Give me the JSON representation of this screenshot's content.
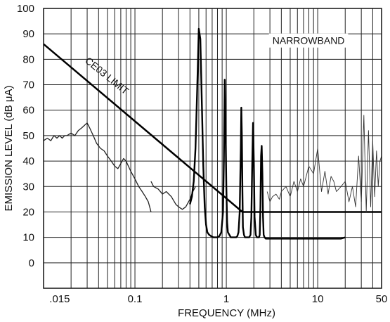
{
  "chart_data": {
    "type": "line",
    "title": "",
    "xlabel": "FREQUENCY (MHz)",
    "ylabel": "EMISSION LEVEL (dB μA)",
    "xscale": "log",
    "xlim": [
      0.01,
      50
    ],
    "ylim": [
      -10,
      100
    ],
    "grid": true,
    "x_ticks": [
      {
        "value": 0.015,
        "label": ".015"
      },
      {
        "value": 0.1,
        "label": "0.1"
      },
      {
        "value": 1,
        "label": "1"
      },
      {
        "value": 10,
        "label": "10"
      },
      {
        "value": 50,
        "label": "50"
      }
    ],
    "y_ticks": [
      {
        "value": 0,
        "label": "0"
      },
      {
        "value": 10,
        "label": "10"
      },
      {
        "value": 20,
        "label": "20"
      },
      {
        "value": 30,
        "label": "30"
      },
      {
        "value": 40,
        "label": "40"
      },
      {
        "value": 50,
        "label": "50"
      },
      {
        "value": 60,
        "label": "60"
      },
      {
        "value": 70,
        "label": "70"
      },
      {
        "value": 80,
        "label": "80"
      },
      {
        "value": 90,
        "label": "90"
      },
      {
        "value": 100,
        "label": "100"
      }
    ],
    "annotations": [
      {
        "text": "CE03 LIMIT",
        "x": 0.028,
        "y": 79,
        "rotate": 39
      },
      {
        "text": "NARROWBAND",
        "x": 3.2,
        "y": 86
      }
    ],
    "series": [
      {
        "name": "CE03 LIMIT",
        "style": "limit",
        "x": [
          0.01,
          1.5,
          50
        ],
        "y": [
          86,
          20,
          20
        ]
      },
      {
        "name": "",
        "style": "broadband",
        "x": [
          0.01,
          0.011,
          0.012,
          0.013,
          0.014,
          0.015,
          0.016,
          0.017,
          0.018,
          0.02,
          0.022,
          0.024,
          0.026,
          0.028,
          0.03,
          0.032,
          0.035,
          0.038,
          0.042,
          0.046,
          0.05,
          0.055,
          0.06,
          0.065,
          0.07,
          0.075,
          0.08,
          0.09,
          0.1,
          0.11,
          0.12,
          0.13,
          0.14,
          0.145,
          0.15
        ],
        "y": [
          48,
          49,
          48,
          50,
          49,
          50,
          49,
          50,
          50,
          51,
          50,
          52,
          53,
          54,
          55,
          53,
          50,
          47,
          45,
          44,
          42,
          40,
          38,
          37,
          39,
          41,
          40,
          36,
          33,
          30,
          28,
          26,
          24,
          22,
          20
        ]
      },
      {
        "name": "",
        "style": "broadband",
        "x": [
          0.15,
          0.16,
          0.18,
          0.2,
          0.22,
          0.25,
          0.28,
          0.3,
          0.33,
          0.36,
          0.4,
          0.43,
          0.46
        ],
        "y": [
          32,
          30,
          29,
          27,
          28,
          26,
          23,
          22,
          21,
          22,
          25,
          28,
          30
        ]
      },
      {
        "name": "NARROWBAND",
        "style": "narrowband",
        "x": [
          0.4,
          0.42,
          0.44,
          0.46,
          0.48,
          0.5,
          0.52,
          0.54,
          0.56,
          0.58,
          0.6,
          0.62,
          0.65,
          0.68,
          0.72,
          0.76,
          0.8,
          0.84,
          0.88,
          0.92,
          0.94,
          0.96,
          0.98,
          1.0,
          1.02,
          1.04,
          1.08,
          1.12,
          1.16,
          1.2,
          1.24,
          1.28,
          1.32,
          1.36,
          1.4,
          1.44,
          1.46,
          1.48,
          1.5,
          1.52,
          1.56,
          1.6,
          1.66,
          1.72,
          1.78,
          1.84,
          1.88,
          1.92,
          1.96,
          2.0,
          2.04,
          2.1,
          2.16,
          2.22,
          2.28,
          2.32,
          2.36,
          2.4,
          2.44,
          2.48,
          2.52,
          2.56,
          2.62,
          2.7,
          2.8,
          3.0,
          3.5,
          4.0,
          5.0,
          6.0,
          8.0,
          10.0,
          12.0,
          14.0,
          16.0,
          18.0,
          20.0
        ],
        "y": [
          23,
          26,
          32,
          45,
          68,
          92,
          88,
          62,
          38,
          22,
          15,
          12,
          11,
          10.5,
          10,
          10,
          10,
          10.5,
          12,
          20,
          40,
          72,
          55,
          30,
          16,
          12,
          11,
          10,
          10,
          10,
          10,
          10,
          10.5,
          12,
          20,
          45,
          61,
          50,
          28,
          14,
          11,
          10,
          10,
          10,
          10,
          11,
          18,
          38,
          55,
          40,
          18,
          11,
          10,
          10,
          10,
          11,
          22,
          42,
          46,
          35,
          18,
          11,
          10,
          9.5,
          9.5,
          9.5,
          9.5,
          9.5,
          9.5,
          9.5,
          9.5,
          9.5,
          9.5,
          9.5,
          9.5,
          9.5,
          10
        ]
      },
      {
        "name": "",
        "style": "noise",
        "x": [
          2.8,
          3.0,
          3.2,
          3.5,
          3.8,
          4.0,
          4.5,
          5.0,
          5.5,
          6.0,
          6.5,
          7.0,
          8.0,
          9.0,
          10.0,
          11.0,
          12.0,
          13.0,
          14.0,
          15.0,
          16.0,
          18.0,
          20.0,
          22.0,
          24.0,
          26.0,
          28.0,
          30.0,
          32.0,
          34.0,
          36.0,
          38.0,
          40.0,
          42.0,
          44.0,
          46.0,
          48.0,
          50.0
        ],
        "y": [
          28,
          24,
          26,
          27,
          25,
          28,
          30,
          26,
          32,
          28,
          33,
          30,
          38,
          35,
          45,
          28,
          36,
          27,
          34,
          32,
          28,
          30,
          32,
          24,
          30,
          22,
          42,
          24,
          58,
          20,
          52,
          22,
          48,
          26,
          44,
          30,
          40,
          42
        ]
      }
    ]
  }
}
